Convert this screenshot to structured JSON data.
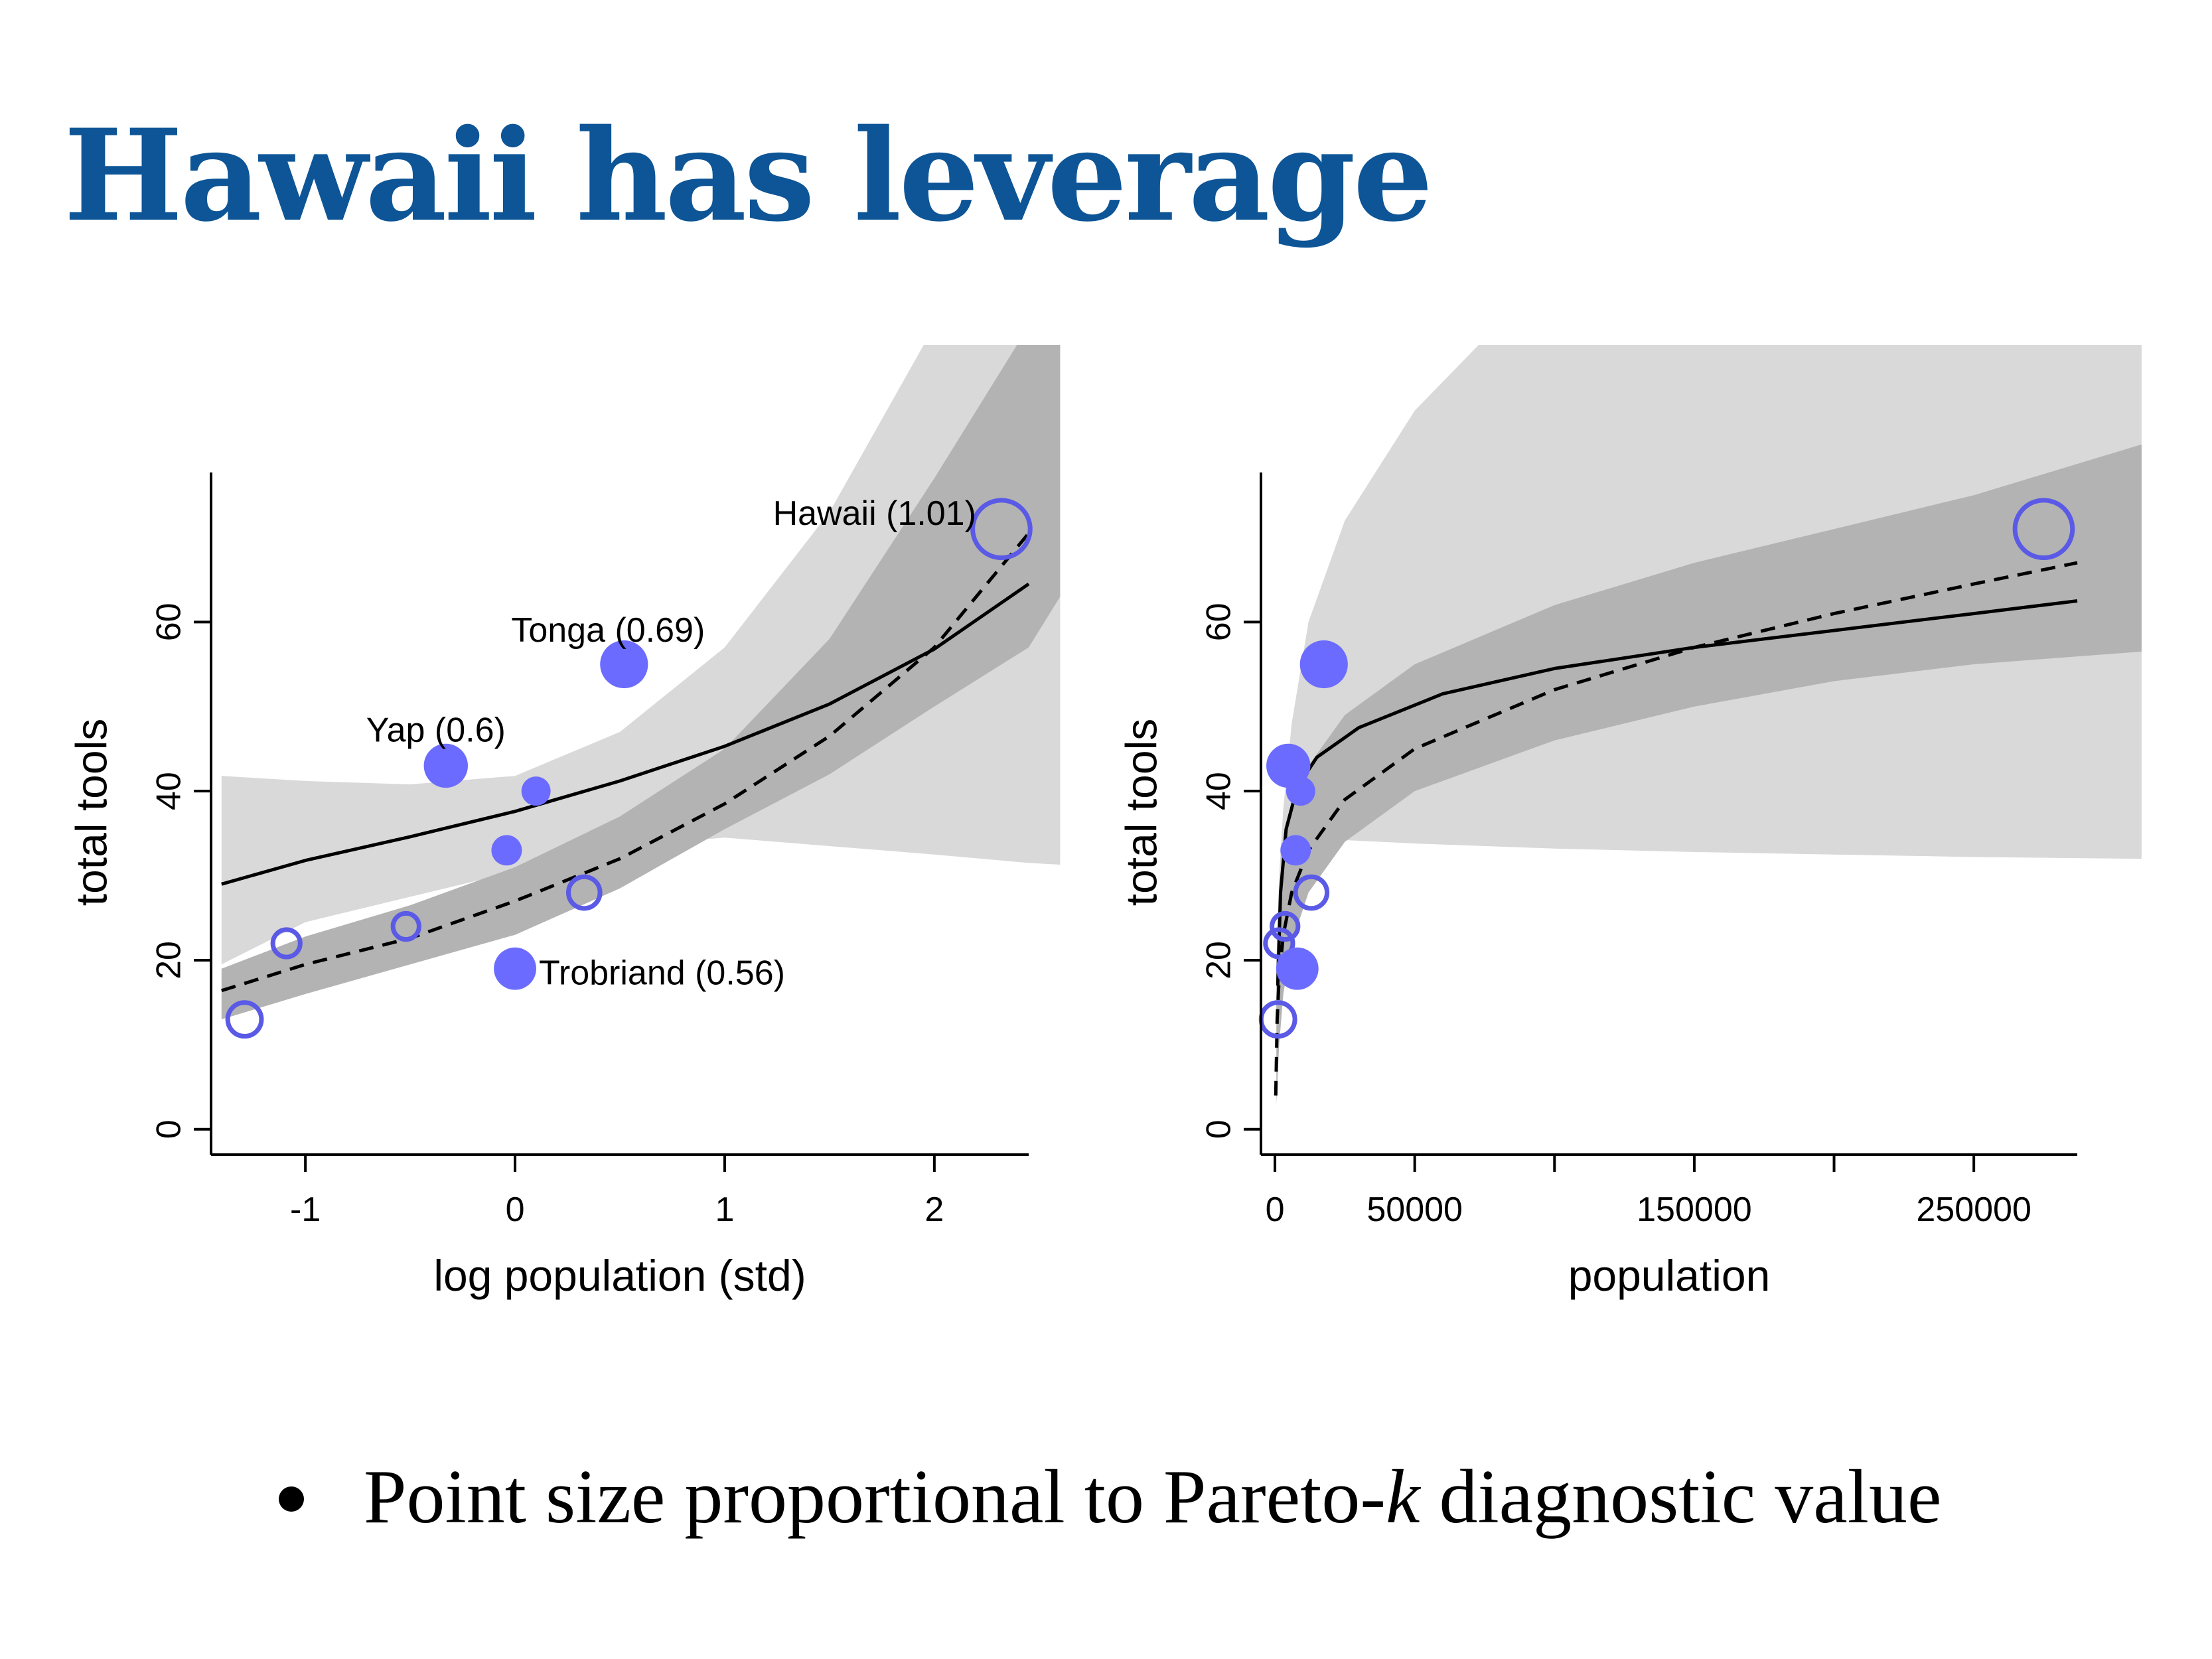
{
  "title": "Hawaii has leverage",
  "bullet": {
    "before": "Point size proportional to Pareto-",
    "italic": "k",
    "after": " diagnostic value"
  },
  "colors": {
    "title": "#0d5596",
    "point": "#6b6bff",
    "point_hollow": "#5a5ae6",
    "band_outer": "#d9d9d9",
    "band_inner": "#b3b3b3"
  },
  "chart_data": [
    {
      "type": "scatter",
      "xlabel": "log population (std)",
      "ylabel": "total tools",
      "xlim": [
        -1.45,
        2.45
      ],
      "ylim": [
        -3,
        78
      ],
      "xticks": [
        -1,
        0,
        1,
        2
      ],
      "yticks": [
        0,
        20,
        40,
        60
      ],
      "grid": false,
      "points": [
        {
          "x": -1.29,
          "y": 13,
          "k": 0.45,
          "contact": "low"
        },
        {
          "x": -1.09,
          "y": 22,
          "k": 0.3,
          "contact": "low"
        },
        {
          "x": -0.52,
          "y": 24,
          "k": 0.27,
          "contact": "low"
        },
        {
          "x": -0.33,
          "y": 43,
          "k": 0.6,
          "contact": "high",
          "label": "Yap (0.6)"
        },
        {
          "x": -0.04,
          "y": 33,
          "k": 0.28,
          "contact": "high"
        },
        {
          "x": 0.0,
          "y": 19,
          "k": 0.56,
          "contact": "high",
          "label": "Trobriand (0.56)"
        },
        {
          "x": 0.1,
          "y": 40,
          "k": 0.25,
          "contact": "high"
        },
        {
          "x": 0.33,
          "y": 28,
          "k": 0.4,
          "contact": "low"
        },
        {
          "x": 0.52,
          "y": 55,
          "k": 0.69,
          "contact": "high",
          "label": "Tonga (0.69)"
        },
        {
          "x": 2.32,
          "y": 71,
          "k": 1.01,
          "contact": "low",
          "label": "Hawaii (1.01)"
        }
      ],
      "curves": [
        {
          "style": "solid",
          "x": [
            -1.4,
            -1.0,
            -0.5,
            0.0,
            0.5,
            1.0,
            1.5,
            2.0,
            2.45
          ],
          "y": [
            29,
            31.8,
            34.6,
            37.6,
            41.2,
            45.3,
            50.3,
            56.8,
            64.5
          ]
        },
        {
          "style": "dashed",
          "x": [
            -1.4,
            -1.0,
            -0.5,
            0.0,
            0.5,
            1.0,
            1.5,
            2.0,
            2.45
          ],
          "y": [
            16.4,
            19.5,
            22.6,
            27.0,
            32.0,
            38.5,
            46.5,
            57.0,
            70.5
          ]
        }
      ],
      "bands": [
        {
          "fill": "outer",
          "x": [
            -1.4,
            -1.0,
            -0.5,
            0.0,
            0.5,
            1.0,
            1.5,
            2.0,
            2.45,
            2.6
          ],
          "lower": [
            19.5,
            24.5,
            27.5,
            30.5,
            33.5,
            34.5,
            33.5,
            32.5,
            31.5,
            31.3
          ],
          "upper": [
            41.8,
            41.2,
            40.8,
            41.8,
            47.0,
            57.0,
            73.0,
            95.0,
            110.0,
            115.0
          ]
        },
        {
          "fill": "inner",
          "x": [
            -1.4,
            -1.0,
            -0.5,
            0.0,
            0.5,
            1.0,
            1.5,
            2.0,
            2.45,
            2.6
          ],
          "lower": [
            13.0,
            16.0,
            19.5,
            23.0,
            28.5,
            35.5,
            42.0,
            50.0,
            57.0,
            63.0
          ],
          "upper": [
            19.0,
            22.8,
            26.5,
            31.0,
            37.0,
            45.0,
            58.0,
            77.0,
            95.0,
            100.0
          ]
        }
      ]
    },
    {
      "type": "scatter",
      "xlabel": "population",
      "ylabel": "total tools",
      "xlim": [
        -5000,
        287000
      ],
      "ylim": [
        -3,
        78
      ],
      "xticks": [
        0,
        50000,
        100000,
        150000,
        200000,
        250000
      ],
      "xtick_labels": [
        "0",
        "50000",
        "",
        "150000",
        "",
        "250000"
      ],
      "yticks": [
        0,
        20,
        40,
        60
      ],
      "grid": false,
      "points": [
        {
          "x": 1100,
          "y": 13,
          "k": 0.45,
          "contact": "low"
        },
        {
          "x": 1500,
          "y": 22,
          "k": 0.3,
          "contact": "low"
        },
        {
          "x": 3600,
          "y": 24,
          "k": 0.27,
          "contact": "low"
        },
        {
          "x": 4791,
          "y": 43,
          "k": 0.6,
          "contact": "high"
        },
        {
          "x": 7400,
          "y": 33,
          "k": 0.28,
          "contact": "high"
        },
        {
          "x": 8000,
          "y": 19,
          "k": 0.56,
          "contact": "high"
        },
        {
          "x": 9200,
          "y": 40,
          "k": 0.25,
          "contact": "high"
        },
        {
          "x": 13000,
          "y": 28,
          "k": 0.4,
          "contact": "low"
        },
        {
          "x": 17500,
          "y": 55,
          "k": 0.69,
          "contact": "high"
        },
        {
          "x": 275000,
          "y": 71,
          "k": 1.01,
          "contact": "low"
        }
      ],
      "curves": [
        {
          "style": "solid",
          "x": [
            1000,
            2000,
            4000,
            8000,
            15000,
            30000,
            60000,
            100000,
            150000,
            200000,
            250000,
            287000
          ],
          "y": [
            17,
            28,
            35.5,
            40.5,
            44,
            47.5,
            51.5,
            54.5,
            57,
            59,
            61,
            62.5
          ]
        },
        {
          "style": "dashed",
          "x": [
            300,
            800,
            1500,
            3000,
            6000,
            12000,
            25000,
            50000,
            100000,
            150000,
            200000,
            250000,
            287000
          ],
          "y": [
            4,
            13,
            18,
            23,
            28,
            33,
            39,
            45,
            52,
            57,
            61,
            64.5,
            67
          ]
        }
      ],
      "bands": [
        {
          "fill": "outer",
          "x": [
            500,
            1500,
            3000,
            6000,
            12000,
            25000,
            50000,
            100000,
            150000,
            200000,
            250000,
            310000
          ],
          "lower": [
            14,
            24,
            29,
            32,
            34,
            34.2,
            33.8,
            33.2,
            32.8,
            32.5,
            32.2,
            32
          ],
          "upper": [
            20,
            30,
            38,
            48,
            60,
            72,
            85,
            102,
            113,
            118,
            122,
            126
          ]
        },
        {
          "fill": "inner",
          "x": [
            500,
            1500,
            3000,
            6000,
            12000,
            25000,
            50000,
            100000,
            150000,
            200000,
            250000,
            310000
          ],
          "lower": [
            3,
            10,
            16,
            22,
            28,
            34,
            40,
            46,
            50,
            53,
            55,
            56.5
          ],
          "upper": [
            20,
            27,
            33,
            38,
            43,
            49,
            55,
            62,
            67,
            71,
            75,
            81
          ]
        }
      ]
    }
  ],
  "annotations": [
    {
      "text": "Hawaii (1.01)"
    },
    {
      "text": "Tonga (0.69)"
    },
    {
      "text": "Yap (0.6)"
    },
    {
      "text": "Trobriand (0.56)"
    }
  ]
}
